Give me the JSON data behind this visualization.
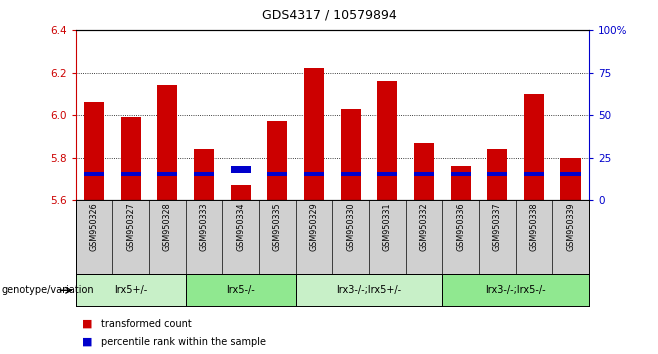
{
  "title": "GDS4317 / 10579894",
  "samples": [
    "GSM950326",
    "GSM950327",
    "GSM950328",
    "GSM950333",
    "GSM950334",
    "GSM950335",
    "GSM950329",
    "GSM950330",
    "GSM950331",
    "GSM950332",
    "GSM950336",
    "GSM950337",
    "GSM950338",
    "GSM950339"
  ],
  "red_values": [
    6.06,
    5.99,
    6.14,
    5.84,
    5.67,
    5.97,
    6.22,
    6.03,
    6.16,
    5.87,
    5.76,
    5.84,
    6.1,
    5.8
  ],
  "blue_values": [
    5.715,
    5.715,
    5.715,
    5.715,
    5.725,
    5.715,
    5.715,
    5.715,
    5.715,
    5.715,
    5.715,
    5.715,
    5.715,
    5.715
  ],
  "blue_heights": [
    0.018,
    0.018,
    0.018,
    0.018,
    0.035,
    0.018,
    0.018,
    0.018,
    0.018,
    0.018,
    0.018,
    0.018,
    0.018,
    0.018
  ],
  "ylim": [
    5.6,
    6.4
  ],
  "y_ticks": [
    5.6,
    5.8,
    6.0,
    6.2,
    6.4
  ],
  "right_ylim": [
    0,
    100
  ],
  "right_yticks": [
    0,
    25,
    50,
    75,
    100
  ],
  "right_yticklabels": [
    "0",
    "25",
    "50",
    "75",
    "100%"
  ],
  "ybase": 5.6,
  "groups": [
    {
      "label": "lrx5+/-",
      "start": 0,
      "end": 3,
      "color": "#c8f0c8"
    },
    {
      "label": "lrx5-/-",
      "start": 3,
      "end": 6,
      "color": "#90e890"
    },
    {
      "label": "lrx3-/-;lrx5+/-",
      "start": 6,
      "end": 10,
      "color": "#c8f0c8"
    },
    {
      "label": "lrx3-/-;lrx5-/-",
      "start": 10,
      "end": 14,
      "color": "#90e890"
    }
  ],
  "group_label_prefix": "genotype/variation",
  "legend_red": "transformed count",
  "legend_blue": "percentile rank within the sample",
  "bar_width": 0.55,
  "red_color": "#cc0000",
  "blue_color": "#0000cc",
  "left_tick_color": "#cc0000",
  "right_tick_color": "#0000cc",
  "grid_color": "#000000",
  "sample_area_color": "#d0d0d0",
  "title_fontsize": 9
}
